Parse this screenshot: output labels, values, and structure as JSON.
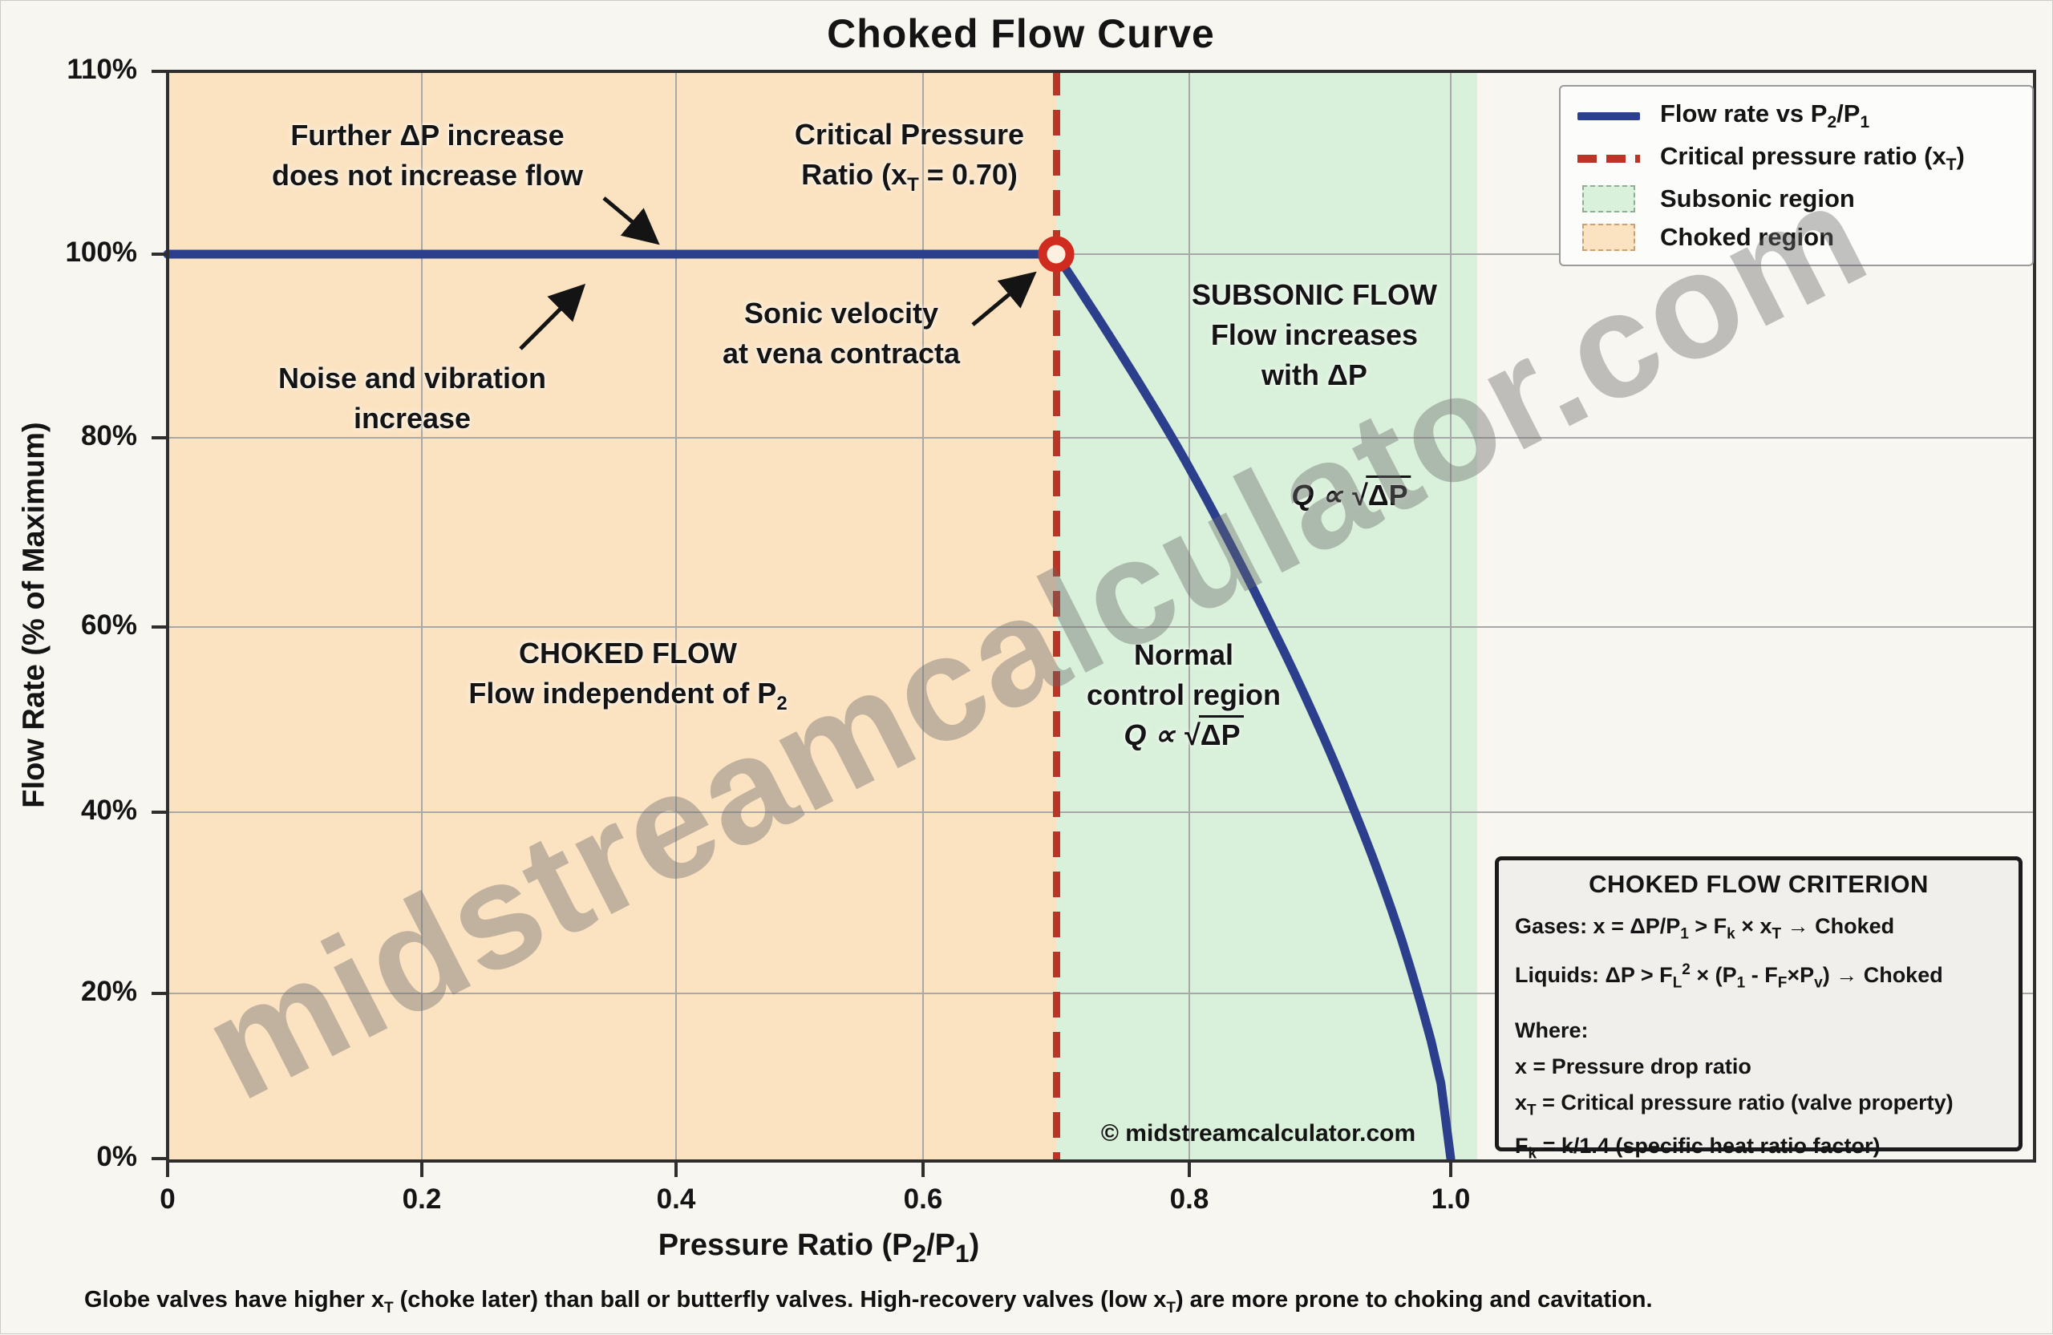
{
  "title": "Choked Flow Curve",
  "watermark_text": "midstreamcalculator.com",
  "colors": {
    "flow_line": "#2b3f8c",
    "critical_line": "#bb3526",
    "marker_ring": "#cf2b1f",
    "marker_fill": "#fdf0e0",
    "subsonic_region": "#d9f1da",
    "choked_region": "#fbe3c2"
  },
  "axes": {
    "x_label": "Pressure Ratio (P<sub>2</sub>/P<sub>1</sub>)",
    "y_label": "Flow Rate (% of Maximum)"
  },
  "legend": {
    "items": [
      {
        "label": "Flow rate vs P<sub>2</sub>/P<sub>1</sub>",
        "swatch": "flow-line"
      },
      {
        "label": "Critical pressure ratio (x<sub>T</sub>)",
        "swatch": "dashed-red-line"
      },
      {
        "label": "Subsonic region",
        "swatch": "green-patch"
      },
      {
        "label": "Choked region",
        "swatch": "orange-patch"
      }
    ]
  },
  "annotations": {
    "further_dp": {
      "line1": "Further ΔP increase",
      "line2": "does not increase flow"
    },
    "noise": {
      "line1": "Noise and vibration",
      "line2": "increase"
    },
    "critical_pressure": {
      "line1": "Critical Pressure",
      "line2": "Ratio (x<sub>T</sub> = 0.70)"
    },
    "sonic": {
      "line1": "Sonic velocity",
      "line2": "at vena contracta"
    },
    "subsonic_flow": {
      "line1": "SUBSONIC FLOW",
      "line2": "Flow increases",
      "line3": "with ΔP"
    },
    "q_prop_subsonic": {
      "prefix": "Q ∝ √",
      "radicand": "ΔP"
    },
    "choked_flow": {
      "line1": "CHOKED FLOW",
      "line2": "Flow independent of P<sub>2</sub>"
    },
    "normal_control": {
      "line1": "Normal",
      "line2": "control region",
      "prefix": "Q ∝ √",
      "radicand": "ΔP"
    },
    "copyright": "© midstreamcalculator.com"
  },
  "criterion_box": {
    "title": "CHOKED FLOW CRITERION",
    "gases": "Gases: x = ΔP/P<sub>1</sub> > F<sub>k</sub> × x<sub>T</sub> → Choked",
    "liquids": "Liquids: ΔP > F<sub>L</sub><sup>2</sup> × (P<sub>1</sub> - F<sub>F</sub>×P<sub>v</sub>) → Choked",
    "where_label": "Where:",
    "where_lines": [
      "x = Pressure drop ratio",
      "x<sub>T</sub> = Critical pressure ratio (valve property)",
      "F<sub>k</sub> = k/1.4 (specific heat ratio factor)"
    ]
  },
  "footer": "Globe valves have higher x<sub>T</sub> (choke later) than ball or butterfly valves. High-recovery valves (low x<sub>T</sub>) are more prone to choking and cavitation.",
  "chart_data": {
    "type": "line",
    "title": "Choked Flow Curve",
    "xlabel": "Pressure Ratio (P2/P1)",
    "ylabel": "Flow Rate (% of Maximum)",
    "xlim": [
      0,
      1.45
    ],
    "ylim_percent": [
      0,
      110
    ],
    "x_ticks": [
      0,
      0.2,
      0.4,
      0.6,
      0.8,
      1.0
    ],
    "y_ticks_percent": [
      0,
      20,
      40,
      60,
      80,
      100,
      110
    ],
    "grid": true,
    "legend_position": "upper right",
    "critical_pressure_ratio_xT": 0.7,
    "regions": [
      {
        "name": "Choked region",
        "x_start": 0,
        "x_end": 0.7,
        "color": "#fbe3c2"
      },
      {
        "name": "Subsonic region",
        "x_start": 0.7,
        "x_end": 1.02,
        "color": "#d9f1da"
      }
    ],
    "series": [
      {
        "name": "Flow rate vs P2/P1",
        "flat_segment": {
          "x_range": [
            0,
            0.7
          ],
          "flow_percent": 100
        },
        "curve_model": {
          "formula": "flow% = 100*((1-r)/(1-xT))^exponent",
          "xT": 0.7,
          "exponent": 0.65,
          "x_range": [
            0.7,
            1.0
          ]
        },
        "points": [
          [
            0,
            100
          ],
          [
            0.7,
            100
          ],
          [
            0.75,
            89
          ],
          [
            0.8,
            77
          ],
          [
            0.85,
            64
          ],
          [
            0.9,
            49
          ],
          [
            0.95,
            31
          ],
          [
            1.0,
            0
          ]
        ]
      }
    ],
    "marker_point": {
      "x": 0.7,
      "flow_percent": 100
    }
  }
}
